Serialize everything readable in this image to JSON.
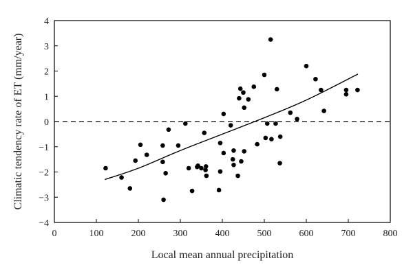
{
  "chart_data": {
    "type": "scatter",
    "xlabel": "Local mean annual precipitation",
    "ylabel": "Climatic tendency rate of ET (mm/year)",
    "xlim": [
      0,
      800
    ],
    "ylim": [
      -4,
      4
    ],
    "x_ticks": [
      0,
      100,
      200,
      300,
      400,
      500,
      600,
      700,
      800
    ],
    "y_ticks": [
      -4,
      -3,
      -2,
      -1,
      0,
      1,
      2,
      3,
      4
    ],
    "grid": false,
    "legend": false,
    "reference_line": {
      "y": 0,
      "style": "dashed"
    },
    "trend_curve": {
      "x": [
        120,
        200,
        300,
        400,
        500,
        600,
        723
      ],
      "y": [
        -2.3,
        -1.85,
        -1.15,
        -0.5,
        0.15,
        0.85,
        1.88
      ]
    },
    "points": [
      {
        "x": 122,
        "y": -1.85
      },
      {
        "x": 160,
        "y": -2.22
      },
      {
        "x": 180,
        "y": -2.65
      },
      {
        "x": 193,
        "y": -1.55
      },
      {
        "x": 205,
        "y": -0.92
      },
      {
        "x": 220,
        "y": -1.32
      },
      {
        "x": 258,
        "y": -0.95
      },
      {
        "x": 258,
        "y": -1.6
      },
      {
        "x": 260,
        "y": -3.1
      },
      {
        "x": 265,
        "y": -2.05
      },
      {
        "x": 272,
        "y": -0.32
      },
      {
        "x": 295,
        "y": -0.95
      },
      {
        "x": 312,
        "y": -0.08
      },
      {
        "x": 320,
        "y": -1.85
      },
      {
        "x": 328,
        "y": -2.75
      },
      {
        "x": 340,
        "y": -1.8
      },
      {
        "x": 342,
        "y": -1.75
      },
      {
        "x": 350,
        "y": -1.85
      },
      {
        "x": 357,
        "y": -0.45
      },
      {
        "x": 360,
        "y": -1.92
      },
      {
        "x": 361,
        "y": -1.78
      },
      {
        "x": 362,
        "y": -2.15
      },
      {
        "x": 392,
        "y": -2.72
      },
      {
        "x": 395,
        "y": -0.85
      },
      {
        "x": 395,
        "y": -1.98
      },
      {
        "x": 403,
        "y": -1.25
      },
      {
        "x": 403,
        "y": 0.3
      },
      {
        "x": 420,
        "y": -0.15
      },
      {
        "x": 425,
        "y": -1.5
      },
      {
        "x": 427,
        "y": -1.72
      },
      {
        "x": 427,
        "y": -1.15
      },
      {
        "x": 437,
        "y": -2.15
      },
      {
        "x": 440,
        "y": 0.92
      },
      {
        "x": 443,
        "y": 1.3
      },
      {
        "x": 445,
        "y": -1.58
      },
      {
        "x": 450,
        "y": 1.15
      },
      {
        "x": 452,
        "y": -1.18
      },
      {
        "x": 452,
        "y": 0.55
      },
      {
        "x": 462,
        "y": 0.88
      },
      {
        "x": 475,
        "y": 1.38
      },
      {
        "x": 483,
        "y": -0.9
      },
      {
        "x": 500,
        "y": 1.85
      },
      {
        "x": 503,
        "y": -0.65
      },
      {
        "x": 507,
        "y": -0.08
      },
      {
        "x": 515,
        "y": 3.25
      },
      {
        "x": 517,
        "y": -0.7
      },
      {
        "x": 527,
        "y": -0.08
      },
      {
        "x": 530,
        "y": 1.28
      },
      {
        "x": 537,
        "y": -1.65
      },
      {
        "x": 538,
        "y": -0.6
      },
      {
        "x": 562,
        "y": 0.35
      },
      {
        "x": 578,
        "y": 0.1
      },
      {
        "x": 600,
        "y": 2.2
      },
      {
        "x": 622,
        "y": 1.68
      },
      {
        "x": 635,
        "y": 1.25
      },
      {
        "x": 642,
        "y": 0.42
      },
      {
        "x": 695,
        "y": 1.25
      },
      {
        "x": 695,
        "y": 1.08
      },
      {
        "x": 722,
        "y": 1.25
      }
    ]
  }
}
